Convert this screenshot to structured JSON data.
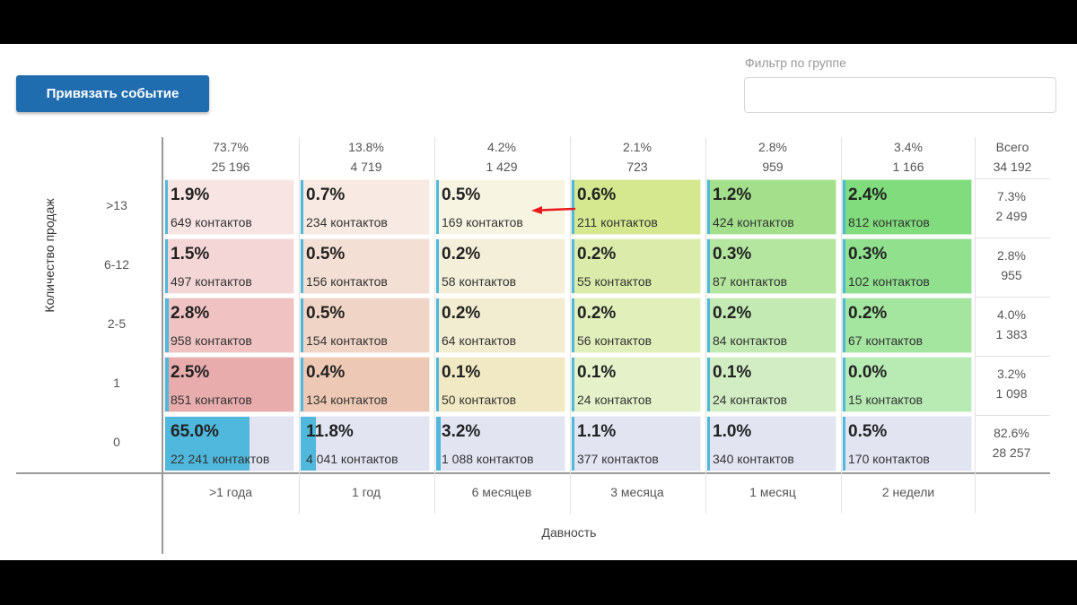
{
  "toolbar": {
    "bind_event_label": "Привязать событие",
    "filter_label": "Фильтр по группе",
    "filter_value": "",
    "filter_placeholder": ""
  },
  "matrix": {
    "y_title": "Количество продаж",
    "x_title": "Давность",
    "total_label": "Всего",
    "grand_total": "34 192",
    "columns": [
      {
        "label": ">1 года",
        "pct": "73.7%",
        "count": "25 196"
      },
      {
        "label": "1 год",
        "pct": "13.8%",
        "count": "4 719"
      },
      {
        "label": "6 месяцев",
        "pct": "4.2%",
        "count": "1 429"
      },
      {
        "label": "3 месяца",
        "pct": "2.1%",
        "count": "723"
      },
      {
        "label": "1 месяц",
        "pct": "2.8%",
        "count": "959"
      },
      {
        "label": "2 недели",
        "pct": "3.4%",
        "count": "1 166"
      }
    ],
    "rows": [
      {
        "label": ">13",
        "total_pct": "7.3%",
        "total_count": "2 499",
        "cells": [
          {
            "pct": "1.9%",
            "count": "649 контактов",
            "fill": 0.019
          },
          {
            "pct": "0.7%",
            "count": "234 контактов",
            "fill": 0.007
          },
          {
            "pct": "0.5%",
            "count": "169 контактов",
            "fill": 0.005
          },
          {
            "pct": "0.6%",
            "count": "211 контактов",
            "fill": 0.006
          },
          {
            "pct": "1.2%",
            "count": "424 контактов",
            "fill": 0.012
          },
          {
            "pct": "2.4%",
            "count": "812 контактов",
            "fill": 0.024
          }
        ]
      },
      {
        "label": "6-12",
        "total_pct": "2.8%",
        "total_count": "955",
        "cells": [
          {
            "pct": "1.5%",
            "count": "497 контактов",
            "fill": 0.015
          },
          {
            "pct": "0.5%",
            "count": "156 контактов",
            "fill": 0.005
          },
          {
            "pct": "0.2%",
            "count": "58 контактов",
            "fill": 0.002
          },
          {
            "pct": "0.2%",
            "count": "55 контактов",
            "fill": 0.002
          },
          {
            "pct": "0.3%",
            "count": "87 контактов",
            "fill": 0.003
          },
          {
            "pct": "0.3%",
            "count": "102 контактов",
            "fill": 0.003
          }
        ]
      },
      {
        "label": "2-5",
        "total_pct": "4.0%",
        "total_count": "1 383",
        "cells": [
          {
            "pct": "2.8%",
            "count": "958 контактов",
            "fill": 0.028
          },
          {
            "pct": "0.5%",
            "count": "154 контактов",
            "fill": 0.005
          },
          {
            "pct": "0.2%",
            "count": "64 контактов",
            "fill": 0.002
          },
          {
            "pct": "0.2%",
            "count": "56 контактов",
            "fill": 0.002
          },
          {
            "pct": "0.2%",
            "count": "84 контактов",
            "fill": 0.002
          },
          {
            "pct": "0.2%",
            "count": "67 контактов",
            "fill": 0.002
          }
        ]
      },
      {
        "label": "1",
        "total_pct": "3.2%",
        "total_count": "1 098",
        "cells": [
          {
            "pct": "2.5%",
            "count": "851 контактов",
            "fill": 0.025
          },
          {
            "pct": "0.4%",
            "count": "134 контактов",
            "fill": 0.004
          },
          {
            "pct": "0.1%",
            "count": "50 контактов",
            "fill": 0.001
          },
          {
            "pct": "0.1%",
            "count": "24 контактов",
            "fill": 0.001
          },
          {
            "pct": "0.1%",
            "count": "24 контактов",
            "fill": 0.001
          },
          {
            "pct": "0.0%",
            "count": "15 контактов",
            "fill": 0.0
          }
        ]
      },
      {
        "label": "0",
        "total_pct": "82.6%",
        "total_count": "28 257",
        "cells": [
          {
            "pct": "65.0%",
            "count": "22 241 контактов",
            "fill": 0.65
          },
          {
            "pct": "11.8%",
            "count": "4 041 контактов",
            "fill": 0.118
          },
          {
            "pct": "3.2%",
            "count": "1 088 контактов",
            "fill": 0.032
          },
          {
            "pct": "1.1%",
            "count": "377 контактов",
            "fill": 0.011
          },
          {
            "pct": "1.0%",
            "count": "340 контактов",
            "fill": 0.01
          },
          {
            "pct": "0.5%",
            "count": "170 контактов",
            "fill": 0.005
          }
        ]
      }
    ],
    "cell_colors": [
      [
        "#f9e4e4",
        "#f8e9e2",
        "#f7f4e2",
        "#d5e88f",
        "#a4e08c",
        "#80dc7c"
      ],
      [
        "#f5d6d6",
        "#f3dfd4",
        "#f3efd8",
        "#dbecaa",
        "#b4e69f",
        "#90e08e"
      ],
      [
        "#f0c2c2",
        "#f0d4c6",
        "#f2ecd0",
        "#e1efba",
        "#c4eab4",
        "#a4e5a0"
      ],
      [
        "#e9acad",
        "#edc9b5",
        "#f1e9c3",
        "#e5f1c9",
        "#d2edc4",
        "#b8ebb4"
      ],
      [
        "#e2e4f2",
        "#e2e4f2",
        "#e2e4f2",
        "#e2e4f2",
        "#e2e4f2",
        "#e2e4f2"
      ]
    ],
    "bar_color": "#4fb8dc",
    "arrow_color": "#e8191d"
  }
}
